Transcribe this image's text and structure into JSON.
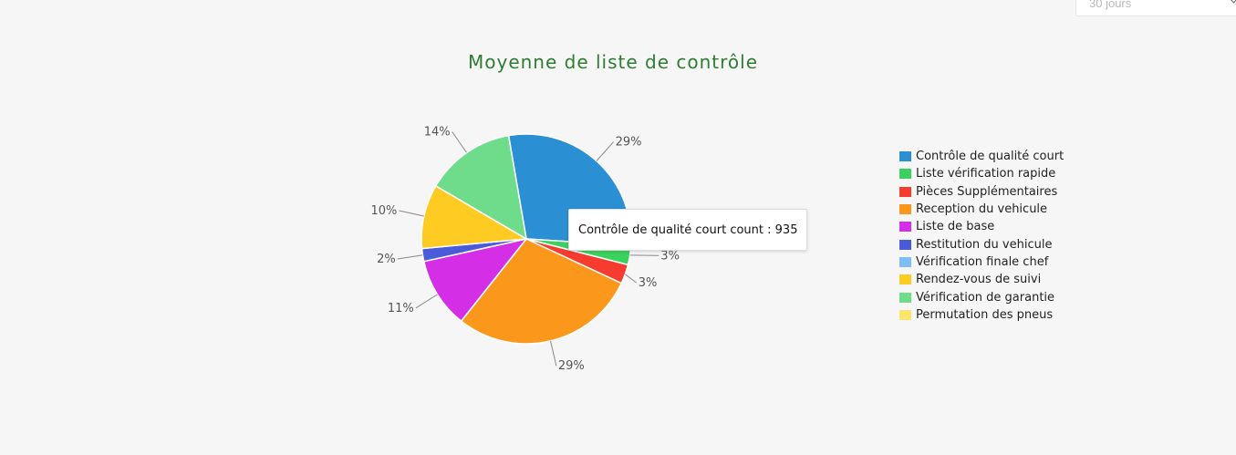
{
  "period_select": {
    "value": "30 jours"
  },
  "tooltip": {
    "text": "Contrôle de qualité court count : 935"
  },
  "chart_data": {
    "type": "pie",
    "title": "Moyenne de liste de contrôle",
    "legend_position": "right",
    "slices": [
      {
        "name": "Contrôle de qualité court",
        "percent": 29,
        "label": "29%",
        "color": "#2b8fd3"
      },
      {
        "name": "Liste vérification rapide",
        "percent": 3,
        "label": "3%",
        "color": "#3bd15e"
      },
      {
        "name": "Pièces Supplémentaires",
        "percent": 3,
        "label": "3%",
        "color": "#f53c2e"
      },
      {
        "name": "Reception du vehicule",
        "percent": 29,
        "label": "29%",
        "color": "#fb971b"
      },
      {
        "name": "Liste de base",
        "percent": 11,
        "label": "11%",
        "color": "#d42ee6"
      },
      {
        "name": "Restitution du vehicule",
        "percent": 2,
        "label": "2%",
        "color": "#4a5bd9"
      },
      {
        "name": "Vérification finale chef",
        "percent": 0,
        "label": "",
        "color": "#7fbdf5"
      },
      {
        "name": "Rendez-vous de suivi",
        "percent": 10,
        "label": "10%",
        "color": "#fecb22"
      },
      {
        "name": "Vérification de garantie",
        "percent": 14,
        "label": "14%",
        "color": "#6fdc8c"
      },
      {
        "name": "Permutation des pneus",
        "percent": 0,
        "label": "",
        "color": "#fde56c"
      }
    ]
  }
}
